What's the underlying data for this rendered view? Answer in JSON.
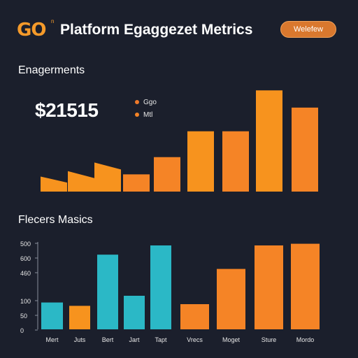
{
  "header": {
    "logo_text": "GO",
    "logo_mark": "n",
    "title": "Platform Egaggezet Metrics",
    "button_label": "Welefew"
  },
  "colors": {
    "background": "#1b1f2c",
    "orange": "#f7931e",
    "orange_dark": "#f58426",
    "teal": "#2bb8c6",
    "button": "#d9782e"
  },
  "top_section": {
    "title": "Enagerments",
    "kpi_value": "$21515",
    "legend": [
      {
        "label": "Ggo",
        "color": "#f07a2a"
      },
      {
        "label": "Mtl",
        "color": "#f58426"
      }
    ]
  },
  "bottom_section": {
    "title": "Flecers Masics"
  },
  "chart_data": [
    {
      "type": "bar",
      "title": "",
      "xlabel": "",
      "ylabel": "",
      "grid": false,
      "ylim": [
        0,
        100
      ],
      "values": [
        14,
        19,
        27,
        16,
        32,
        56,
        56,
        94,
        78
      ],
      "bars": [
        {
          "value": 14,
          "color": "#f7931e",
          "top": "slanted"
        },
        {
          "value": 19,
          "color": "#f7931e",
          "top": "slanted"
        },
        {
          "value": 27,
          "color": "#f7931e",
          "top": "slanted"
        },
        {
          "value": 16,
          "color": "#f58426",
          "top": "flat"
        },
        {
          "value": 32,
          "color": "#f58426",
          "top": "flat"
        },
        {
          "value": 56,
          "color": "#f7931e",
          "top": "flat"
        },
        {
          "value": 56,
          "color": "#f58426",
          "top": "flat"
        },
        {
          "value": 94,
          "color": "#f7931e",
          "top": "flat"
        },
        {
          "value": 78,
          "color": "#f58426",
          "top": "flat"
        }
      ]
    },
    {
      "type": "bar",
      "title": "",
      "xlabel": "",
      "ylabel": "",
      "grid": false,
      "ylim": [
        0,
        500
      ],
      "tick_labels": [
        "500",
        "600",
        "460",
        "100",
        "50",
        "0"
      ],
      "categories": [
        "Mert",
        "Juts",
        "Bert",
        "Jart",
        "Tapt",
        "Vrecs",
        "Moget",
        "Sture",
        "Mordo"
      ],
      "values": [
        160,
        140,
        445,
        200,
        500,
        150,
        360,
        500,
        510
      ],
      "colors": [
        "#2bb8c6",
        "#f7931e",
        "#2bb8c6",
        "#2bb8c6",
        "#2bb8c6",
        "#f58426",
        "#f58426",
        "#f58426",
        "#f58426"
      ]
    }
  ]
}
